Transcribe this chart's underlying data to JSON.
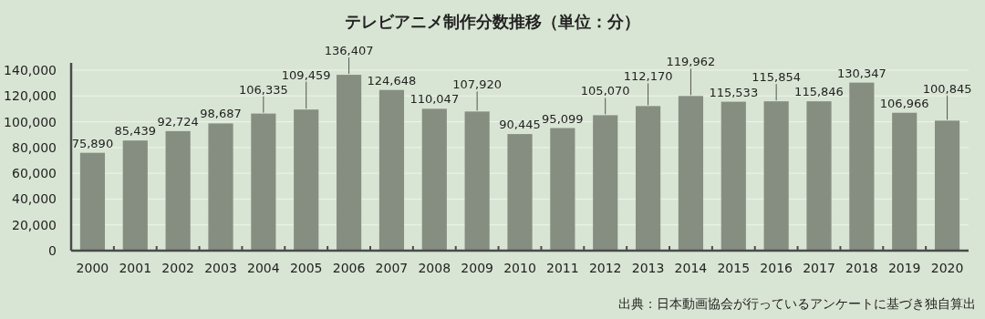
{
  "chart_data": {
    "type": "bar",
    "title": "テレビアニメ制作分数推移（単位：分）",
    "categories": [
      "2000",
      "2001",
      "2002",
      "2003",
      "2004",
      "2005",
      "2006",
      "2007",
      "2008",
      "2009",
      "2010",
      "2011",
      "2012",
      "2013",
      "2014",
      "2015",
      "2016",
      "2017",
      "2018",
      "2019",
      "2020"
    ],
    "values": [
      75890,
      85439,
      92724,
      98687,
      106335,
      109459,
      136407,
      124648,
      110047,
      107920,
      90445,
      95099,
      105070,
      112170,
      119962,
      115533,
      115854,
      115846,
      130347,
      106966,
      100845
    ],
    "value_labels": [
      "75,890",
      "85,439",
      "92,724",
      "98,687",
      "106,335",
      "109,459",
      "136,407",
      "124,648",
      "110,047",
      "107,920",
      "90,445",
      "95,099",
      "105,070",
      "112,170",
      "119,962",
      "115,533",
      "115,854",
      "115,846",
      "130,347",
      "106,966",
      "100,845"
    ],
    "color": "#868e82",
    "ylim": [
      0,
      140000
    ],
    "yticks": [
      0,
      {
        "value": 20000,
        "label": "20,000"
      },
      {
        "value": 40000,
        "label": "40,000"
      },
      {
        "value": 60000,
        "label": "60,000"
      },
      {
        "value": 80000,
        "label": "80,000"
      },
      {
        "value": 100000,
        "label": "100,000"
      },
      {
        "value": 120000,
        "label": "120,000"
      },
      {
        "value": 140000,
        "label": "140,000"
      }
    ],
    "grid": "y",
    "annotations": [
      "出典：日本動画協会が行っているアンケートに基づき独自算出"
    ]
  }
}
